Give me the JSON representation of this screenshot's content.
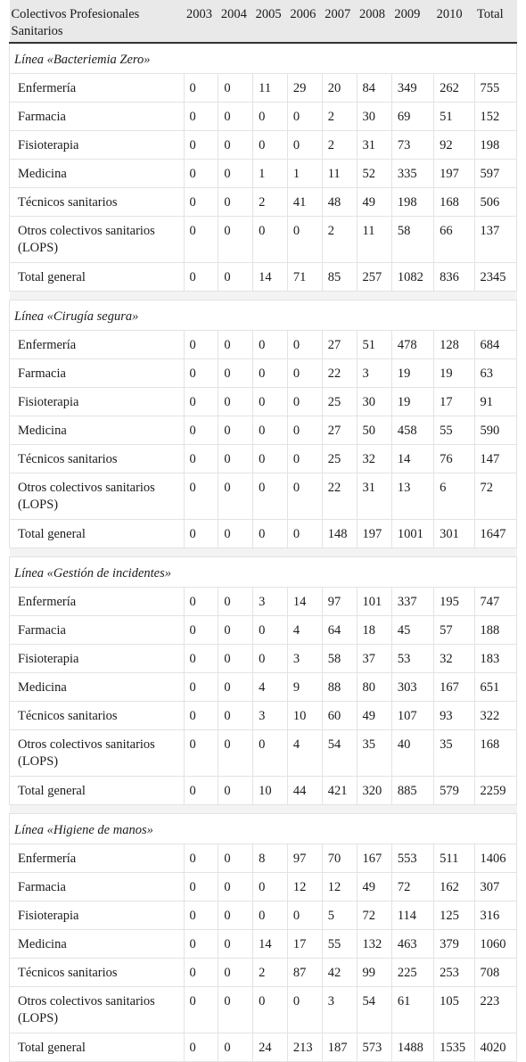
{
  "table": {
    "header": {
      "label": "Colectivos Profesionales Sanitarios",
      "years": [
        "2003",
        "2004",
        "2005",
        "2006",
        "2007",
        "2008",
        "2009",
        "2010"
      ],
      "total": "Total"
    },
    "sections": [
      {
        "title": "Línea «Bacteriemia Zero»",
        "rows": [
          {
            "label": "Enfermería",
            "values": [
              "0",
              "0",
              "11",
              "29",
              "20",
              "84",
              "349",
              "262",
              "755"
            ]
          },
          {
            "label": "Farmacia",
            "values": [
              "0",
              "0",
              "0",
              "0",
              "2",
              "30",
              "69",
              "51",
              "152"
            ]
          },
          {
            "label": "Fisioterapia",
            "values": [
              "0",
              "0",
              "0",
              "0",
              "2",
              "31",
              "73",
              "92",
              "198"
            ]
          },
          {
            "label": "Medicina",
            "values": [
              "0",
              "0",
              "1",
              "1",
              "11",
              "52",
              "335",
              "197",
              "597"
            ]
          },
          {
            "label": "Técnicos sanitarios",
            "values": [
              "0",
              "0",
              "2",
              "41",
              "48",
              "49",
              "198",
              "168",
              "506"
            ]
          },
          {
            "label": "Otros colectivos sanitarios (LOPS)",
            "values": [
              "0",
              "0",
              "0",
              "0",
              "2",
              "11",
              "58",
              "66",
              "137"
            ]
          },
          {
            "label": "Total general",
            "values": [
              "0",
              "0",
              "14",
              "71",
              "85",
              "257",
              "1082",
              "836",
              "2345"
            ]
          }
        ]
      },
      {
        "title": "Línea «Cirugía segura»",
        "rows": [
          {
            "label": "Enfermería",
            "values": [
              "0",
              "0",
              "0",
              "0",
              "27",
              "51",
              "478",
              "128",
              "684"
            ]
          },
          {
            "label": "Farmacia",
            "values": [
              "0",
              "0",
              "0",
              "0",
              "22",
              "3",
              "19",
              "19",
              "63"
            ]
          },
          {
            "label": "Fisioterapia",
            "values": [
              "0",
              "0",
              "0",
              "0",
              "25",
              "30",
              "19",
              "17",
              "91"
            ]
          },
          {
            "label": "Medicina",
            "values": [
              "0",
              "0",
              "0",
              "0",
              "27",
              "50",
              "458",
              "55",
              "590"
            ]
          },
          {
            "label": "Técnicos sanitarios",
            "values": [
              "0",
              "0",
              "0",
              "0",
              "25",
              "32",
              "14",
              "76",
              "147"
            ]
          },
          {
            "label": "Otros colectivos sanitarios (LOPS)",
            "values": [
              "0",
              "0",
              "0",
              "0",
              "22",
              "31",
              "13",
              "6",
              "72"
            ]
          },
          {
            "label": "Total general",
            "values": [
              "0",
              "0",
              "0",
              "0",
              "148",
              "197",
              "1001",
              "301",
              "1647"
            ]
          }
        ]
      },
      {
        "title": "Línea «Gestión de incidentes»",
        "rows": [
          {
            "label": "Enfermería",
            "values": [
              "0",
              "0",
              "3",
              "14",
              "97",
              "101",
              "337",
              "195",
              "747"
            ]
          },
          {
            "label": "Farmacia",
            "values": [
              "0",
              "0",
              "0",
              "4",
              "64",
              "18",
              "45",
              "57",
              "188"
            ]
          },
          {
            "label": "Fisioterapia",
            "values": [
              "0",
              "0",
              "0",
              "3",
              "58",
              "37",
              "53",
              "32",
              "183"
            ]
          },
          {
            "label": "Medicina",
            "values": [
              "0",
              "0",
              "4",
              "9",
              "88",
              "80",
              "303",
              "167",
              "651"
            ]
          },
          {
            "label": "Técnicos sanitarios",
            "values": [
              "0",
              "0",
              "3",
              "10",
              "60",
              "49",
              "107",
              "93",
              "322"
            ]
          },
          {
            "label": "Otros colectivos sanitarios (LOPS)",
            "values": [
              "0",
              "0",
              "0",
              "4",
              "54",
              "35",
              "40",
              "35",
              "168"
            ]
          },
          {
            "label": "Total general",
            "values": [
              "0",
              "0",
              "10",
              "44",
              "421",
              "320",
              "885",
              "579",
              "2259"
            ]
          }
        ]
      },
      {
        "title": "Línea «Higiene de manos»",
        "rows": [
          {
            "label": "Enfermería",
            "values": [
              "0",
              "0",
              "8",
              "97",
              "70",
              "167",
              "553",
              "511",
              "1406"
            ]
          },
          {
            "label": "Farmacia",
            "values": [
              "0",
              "0",
              "0",
              "12",
              "12",
              "49",
              "72",
              "162",
              "307"
            ]
          },
          {
            "label": "Fisioterapia",
            "values": [
              "0",
              "0",
              "0",
              "0",
              "5",
              "72",
              "114",
              "125",
              "316"
            ]
          },
          {
            "label": "Medicina",
            "values": [
              "0",
              "0",
              "14",
              "17",
              "55",
              "132",
              "463",
              "379",
              "1060"
            ]
          },
          {
            "label": "Técnicos sanitarios",
            "values": [
              "0",
              "0",
              "2",
              "87",
              "42",
              "99",
              "225",
              "253",
              "708"
            ]
          },
          {
            "label": "Otros colectivos sanitarios (LOPS)",
            "values": [
              "0",
              "0",
              "0",
              "0",
              "3",
              "54",
              "61",
              "105",
              "223"
            ]
          },
          {
            "label": "Total general",
            "values": [
              "0",
              "0",
              "24",
              "213",
              "187",
              "573",
              "1488",
              "1535",
              "4020"
            ]
          }
        ]
      }
    ]
  }
}
